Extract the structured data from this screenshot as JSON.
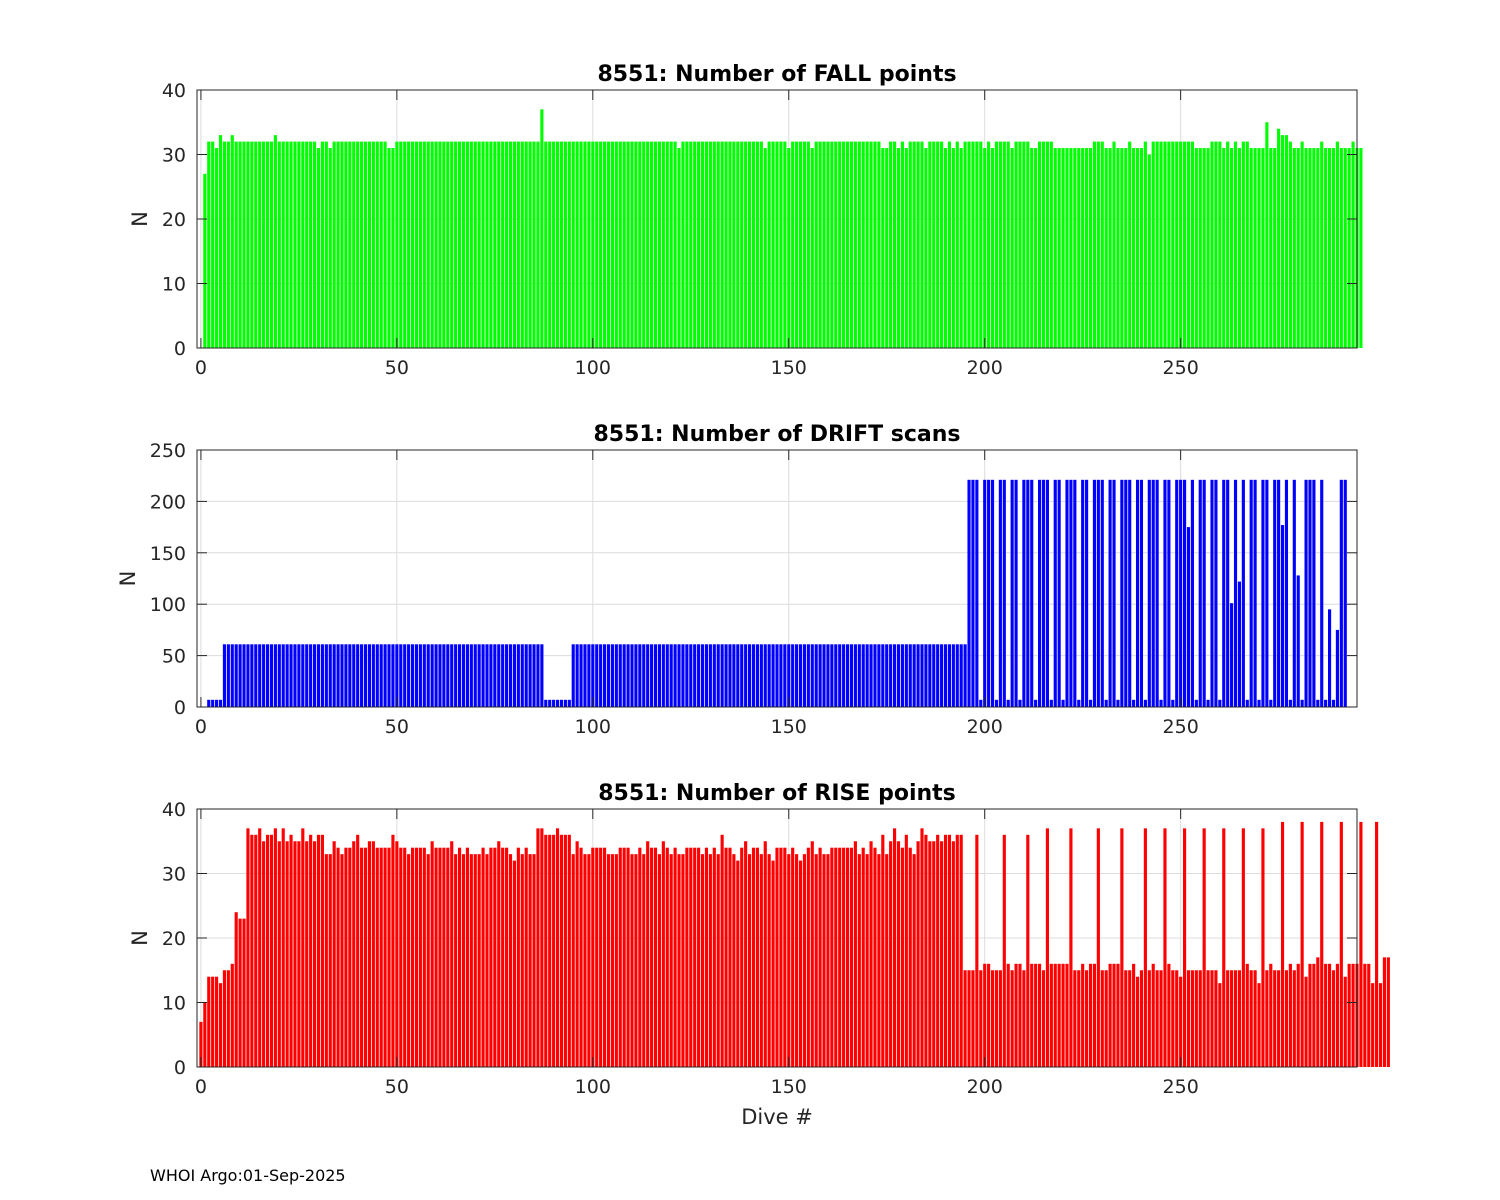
{
  "footer": "WHOI Argo:01-Sep-2025",
  "chart_data": [
    {
      "type": "bar",
      "title": "8551: Number of FALL points",
      "xlabel": "",
      "ylabel": "N",
      "xlim": [
        -1,
        295
      ],
      "ylim": [
        0,
        40
      ],
      "xticks": [
        0,
        50,
        100,
        150,
        200,
        250
      ],
      "yticks": [
        0,
        10,
        20,
        30,
        40
      ],
      "color": "#00ff00",
      "grid": true,
      "x_start": 0,
      "values": [
        0,
        27,
        32,
        32,
        31,
        33,
        32,
        32,
        33,
        32,
        32,
        32,
        32,
        32,
        32,
        32,
        32,
        32,
        32,
        33,
        32,
        32,
        32,
        32,
        32,
        32,
        32,
        32,
        32,
        32,
        31,
        32,
        32,
        31,
        32,
        32,
        32,
        32,
        32,
        32,
        32,
        32,
        32,
        32,
        32,
        32,
        32,
        32,
        31,
        31,
        32,
        32,
        32,
        32,
        32,
        32,
        32,
        32,
        32,
        32,
        32,
        32,
        32,
        32,
        32,
        32,
        32,
        32,
        32,
        32,
        32,
        32,
        32,
        32,
        32,
        32,
        32,
        32,
        32,
        32,
        32,
        32,
        32,
        32,
        32,
        32,
        32,
        37,
        32,
        32,
        32,
        32,
        32,
        32,
        32,
        32,
        32,
        32,
        32,
        32,
        32,
        32,
        32,
        32,
        32,
        32,
        32,
        32,
        32,
        32,
        32,
        32,
        32,
        32,
        32,
        32,
        32,
        32,
        32,
        32,
        32,
        32,
        31,
        32,
        32,
        32,
        32,
        32,
        32,
        32,
        32,
        32,
        32,
        32,
        32,
        32,
        32,
        32,
        32,
        32,
        32,
        32,
        32,
        32,
        31,
        32,
        32,
        32,
        32,
        32,
        31,
        32,
        32,
        32,
        32,
        32,
        31,
        32,
        32,
        32,
        32,
        32,
        32,
        32,
        32,
        32,
        32,
        32,
        32,
        32,
        32,
        32,
        32,
        32,
        31,
        31,
        32,
        32,
        31,
        32,
        31,
        32,
        32,
        32,
        32,
        31,
        32,
        32,
        32,
        32,
        31,
        32,
        31,
        32,
        31,
        32,
        32,
        32,
        32,
        32,
        31,
        32,
        31,
        32,
        32,
        32,
        32,
        31,
        32,
        32,
        32,
        32,
        31,
        31,
        32,
        32,
        32,
        32,
        31,
        31,
        31,
        31,
        31,
        31,
        31,
        31,
        31,
        31,
        32,
        32,
        32,
        31,
        31,
        32,
        31,
        31,
        31,
        32,
        31,
        31,
        31,
        32,
        30,
        32,
        32,
        32,
        32,
        32,
        32,
        32,
        32,
        32,
        32,
        32,
        31,
        31,
        31,
        31,
        32,
        32,
        32,
        31,
        32,
        31,
        32,
        31,
        32,
        32,
        31,
        31,
        31,
        31,
        35,
        31,
        31,
        34,
        33,
        33,
        32,
        31,
        31,
        32,
        31,
        31,
        31,
        31,
        32,
        31,
        31,
        31,
        32,
        31,
        31,
        31,
        32,
        31,
        31
      ]
    },
    {
      "type": "bar",
      "title": "8551: Number of DRIFT scans",
      "xlabel": "",
      "ylabel": "N",
      "xlim": [
        -1,
        295
      ],
      "ylim": [
        0,
        250
      ],
      "xticks": [
        0,
        50,
        100,
        150,
        200,
        250
      ],
      "yticks": [
        0,
        50,
        100,
        150,
        200,
        250
      ],
      "color": "#0000ff",
      "grid": true,
      "x_start": 0,
      "values": [
        0,
        0,
        7,
        7,
        7,
        7,
        61,
        61,
        61,
        61,
        61,
        61,
        61,
        61,
        61,
        61,
        61,
        61,
        61,
        61,
        61,
        61,
        61,
        61,
        61,
        61,
        61,
        61,
        61,
        61,
        61,
        61,
        61,
        61,
        61,
        61,
        61,
        61,
        61,
        61,
        61,
        61,
        61,
        61,
        61,
        61,
        61,
        61,
        61,
        61,
        61,
        61,
        61,
        61,
        61,
        61,
        61,
        61,
        61,
        61,
        61,
        61,
        61,
        61,
        61,
        61,
        61,
        61,
        61,
        61,
        61,
        61,
        61,
        61,
        61,
        61,
        61,
        61,
        61,
        61,
        61,
        61,
        61,
        61,
        61,
        61,
        61,
        61,
        7,
        7,
        7,
        7,
        7,
        7,
        7,
        61,
        61,
        61,
        61,
        61,
        61,
        61,
        61,
        61,
        61,
        61,
        61,
        61,
        61,
        61,
        61,
        61,
        61,
        61,
        61,
        61,
        61,
        61,
        61,
        61,
        61,
        61,
        61,
        61,
        61,
        61,
        61,
        61,
        61,
        61,
        61,
        61,
        61,
        61,
        61,
        61,
        61,
        61,
        61,
        61,
        61,
        61,
        61,
        61,
        61,
        61,
        61,
        61,
        61,
        61,
        61,
        61,
        61,
        61,
        61,
        61,
        61,
        61,
        61,
        61,
        61,
        61,
        61,
        61,
        61,
        61,
        61,
        61,
        61,
        61,
        61,
        61,
        61,
        61,
        61,
        61,
        61,
        61,
        61,
        61,
        61,
        61,
        61,
        61,
        61,
        61,
        61,
        61,
        61,
        61,
        61,
        61,
        61,
        61,
        61,
        61,
        221,
        221,
        221,
        7,
        221,
        221,
        221,
        7,
        221,
        221,
        7,
        221,
        221,
        7,
        221,
        221,
        221,
        7,
        221,
        221,
        221,
        7,
        221,
        221,
        7,
        221,
        221,
        221,
        7,
        221,
        221,
        7,
        221,
        221,
        221,
        7,
        221,
        221,
        7,
        221,
        221,
        221,
        7,
        221,
        221,
        7,
        221,
        221,
        221,
        7,
        221,
        221,
        7,
        221,
        221,
        221,
        175,
        221,
        7,
        221,
        221,
        7,
        221,
        221,
        7,
        221,
        221,
        101,
        221,
        122,
        221,
        7,
        221,
        221,
        7,
        221,
        221,
        7,
        221,
        221,
        177,
        221,
        7,
        221,
        128,
        7,
        221,
        221,
        221,
        7,
        221,
        7,
        95,
        7,
        75,
        221,
        221
      ]
    },
    {
      "type": "bar",
      "title": "8551: Number of RISE points",
      "xlabel": "Dive #",
      "ylabel": "N",
      "xlim": [
        -1,
        295
      ],
      "ylim": [
        0,
        40
      ],
      "xticks": [
        0,
        50,
        100,
        150,
        200,
        250
      ],
      "yticks": [
        0,
        10,
        20,
        30,
        40
      ],
      "color": "#ff0000",
      "grid": true,
      "x_start": 0,
      "values": [
        7,
        10,
        14,
        14,
        14,
        13,
        15,
        15,
        16,
        24,
        23,
        23,
        37,
        36,
        36,
        37,
        35,
        36,
        36,
        37,
        35,
        37,
        35,
        36,
        35,
        35,
        37,
        35,
        36,
        35,
        36,
        36,
        33,
        33,
        35,
        34,
        33,
        34,
        34,
        35,
        36,
        34,
        34,
        35,
        35,
        34,
        34,
        34,
        34,
        36,
        35,
        34,
        34,
        33,
        34,
        34,
        34,
        34,
        33,
        35,
        34,
        34,
        34,
        34,
        35,
        33,
        34,
        33,
        34,
        33,
        33,
        33,
        34,
        33,
        34,
        34,
        35,
        34,
        34,
        33,
        32,
        34,
        33,
        34,
        33,
        33,
        37,
        37,
        36,
        36,
        36,
        37,
        36,
        36,
        36,
        33,
        35,
        34,
        33,
        33,
        34,
        34,
        34,
        34,
        33,
        33,
        33,
        34,
        34,
        34,
        33,
        33,
        34,
        33,
        35,
        34,
        34,
        33,
        35,
        34,
        33,
        34,
        33,
        33,
        34,
        34,
        34,
        34,
        33,
        34,
        33,
        34,
        33,
        36,
        34,
        34,
        33,
        32,
        34,
        35,
        33,
        34,
        34,
        33,
        35,
        33,
        32,
        34,
        34,
        34,
        33,
        34,
        33,
        32,
        33,
        34,
        35,
        33,
        34,
        33,
        33,
        34,
        34,
        34,
        34,
        34,
        34,
        35,
        33,
        34,
        33,
        35,
        34,
        33,
        36,
        33,
        35,
        37,
        35,
        34,
        36,
        34,
        33,
        35,
        37,
        36,
        35,
        35,
        36,
        35,
        36,
        36,
        35,
        36,
        36,
        15,
        15,
        15,
        36,
        15,
        16,
        16,
        15,
        15,
        15,
        36,
        16,
        15,
        16,
        16,
        15,
        36,
        16,
        16,
        16,
        15,
        37,
        16,
        16,
        16,
        16,
        16,
        37,
        15,
        15,
        16,
        15,
        16,
        16,
        37,
        15,
        15,
        16,
        16,
        16,
        37,
        15,
        15,
        16,
        14,
        15,
        37,
        15,
        16,
        15,
        15,
        37,
        16,
        15,
        15,
        14,
        37,
        15,
        15,
        15,
        15,
        37,
        15,
        15,
        15,
        13,
        37,
        15,
        15,
        15,
        15,
        37,
        16,
        15,
        15,
        13,
        37,
        15,
        16,
        15,
        15,
        38,
        15,
        16,
        15,
        16,
        38,
        14,
        16,
        16,
        17,
        38,
        16,
        16,
        15,
        16,
        38,
        14,
        16,
        16,
        16,
        38,
        16,
        16,
        13,
        38,
        13,
        17,
        17
      ]
    }
  ]
}
